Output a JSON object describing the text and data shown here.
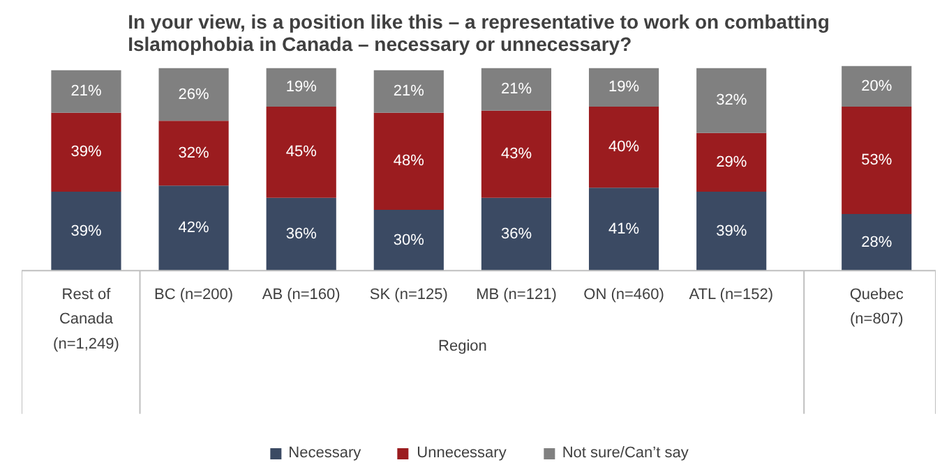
{
  "chart_data": {
    "type": "bar",
    "title": "In your view, is a position like this – a representative to work on combatting Islamophobia in Canada – necessary or unnecessary?",
    "categories": [
      "Rest of Canada (n=1,249)",
      "BC (n=200)",
      "AB (n=160)",
      "SK (n=125)",
      "MB (n=121)",
      "ON (n=460)",
      "ATL (n=152)",
      "Quebec (n=807)"
    ],
    "stacked": true,
    "legend": "bottom",
    "tick_labels": "x",
    "grid": false,
    "series": [
      {
        "name": "Necessary",
        "color": "#3b4a63",
        "values": [
          39,
          42,
          36,
          30,
          36,
          41,
          39,
          28
        ],
        "value_labels": [
          "39%",
          "42%",
          "36%",
          "30%",
          "36%",
          "41%",
          "39%",
          "28%"
        ]
      },
      {
        "name": "Unnecessary",
        "color": "#9b1c1f",
        "values": [
          39,
          32,
          45,
          48,
          43,
          40,
          29,
          53
        ],
        "value_labels": [
          "39%",
          "32%",
          "45%",
          "48%",
          "43%",
          "40%",
          "29%",
          "53%"
        ]
      },
      {
        "name": "Not sure/Can’t say",
        "color": "#808080",
        "values": [
          21,
          26,
          19,
          21,
          21,
          19,
          32,
          20
        ],
        "value_labels": [
          "21%",
          "26%",
          "19%",
          "21%",
          "21%",
          "19%",
          "32%",
          "20%"
        ]
      }
    ],
    "annotations": [
      "Region"
    ]
  }
}
